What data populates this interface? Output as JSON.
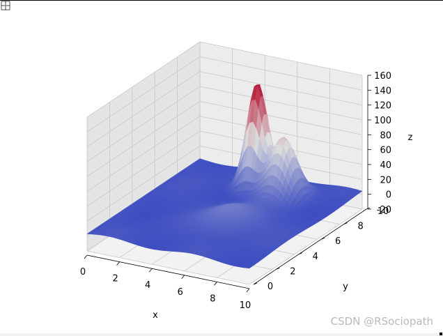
{
  "toolbar": {
    "icon": "move-icon"
  },
  "watermark": "CSDN @RSociopath",
  "chart_data": {
    "type": "surface",
    "colormap": "coolwarm",
    "title": "",
    "xlabel": "x",
    "ylabel": "y",
    "zlabel": "z",
    "xlim": [
      0,
      10
    ],
    "ylim": [
      0,
      10
    ],
    "zlim": [
      -20,
      160
    ],
    "xticks": [
      "0",
      "2",
      "4",
      "6",
      "8",
      "10"
    ],
    "yticks": [
      "0",
      "2",
      "4",
      "6",
      "8",
      "10"
    ],
    "zticks": [
      "-20",
      "0",
      "20",
      "40",
      "60",
      "80",
      "100",
      "120",
      "140",
      "160"
    ],
    "grid": true,
    "base_level": 3,
    "peaks": [
      {
        "x": 4.7,
        "y": 8.3,
        "height": 140,
        "spread": 0.55
      },
      {
        "x": 6.6,
        "y": 7.9,
        "height": 78,
        "spread": 0.7
      },
      {
        "x": 6.0,
        "y": 4.2,
        "height": 22,
        "spread": 1.1
      }
    ],
    "colors": {
      "low": "#3b4cc0",
      "mid": "#dddddd",
      "high": "#b40426"
    }
  }
}
